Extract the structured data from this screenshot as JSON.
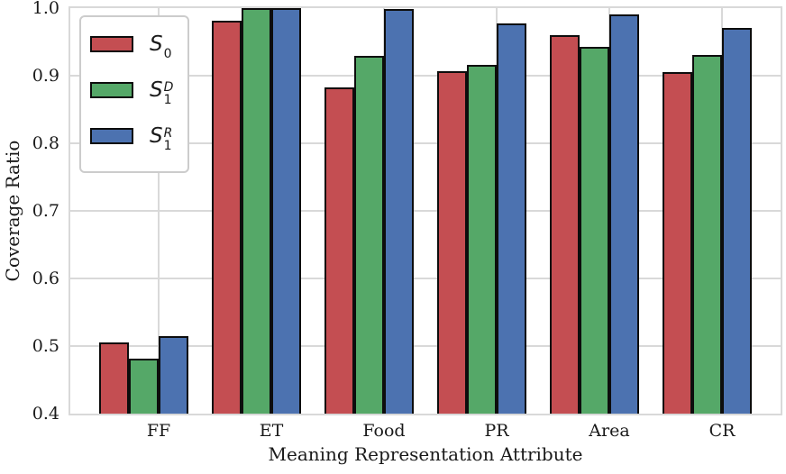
{
  "figure": {
    "ylabel": "Coverage Ratio",
    "xlabel": "Meaning Representation Attribute"
  },
  "legend": {
    "items": [
      {
        "base": "S",
        "sub": "0",
        "sup": "",
        "color": "#c44e52"
      },
      {
        "base": "S",
        "sub": "1",
        "sup": "D",
        "color": "#55a868"
      },
      {
        "base": "S",
        "sub": "1",
        "sup": "R",
        "color": "#4c72b0"
      }
    ]
  },
  "chart_data": {
    "type": "bar",
    "title": "",
    "xlabel": "Meaning Representation Attribute",
    "ylabel": "Coverage Ratio",
    "categories": [
      "FF",
      "ET",
      "Food",
      "PR",
      "Area",
      "CR"
    ],
    "series": [
      {
        "name": "S_0",
        "color": "#c44e52",
        "values": [
          0.505,
          0.981,
          0.882,
          0.907,
          0.96,
          0.905
        ]
      },
      {
        "name": "S_1^D",
        "color": "#55a868",
        "values": [
          0.481,
          1.0,
          0.929,
          0.916,
          0.943,
          0.931
        ]
      },
      {
        "name": "S_1^R",
        "color": "#4c72b0",
        "values": [
          0.515,
          1.0,
          0.998,
          0.977,
          0.991,
          0.97
        ]
      }
    ],
    "ylim": [
      0.4,
      1.0
    ],
    "yticks": [
      0.4,
      0.5,
      0.6,
      0.7,
      0.8,
      0.9,
      1.0
    ],
    "bar_edge_color": "#0d0d0d",
    "grid": true,
    "legend_position": "upper-left"
  }
}
